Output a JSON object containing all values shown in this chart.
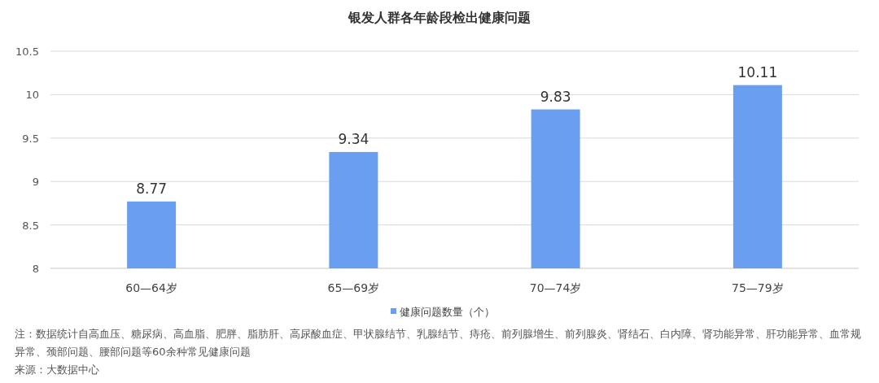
{
  "chart_data": {
    "type": "bar",
    "title": "银发人群各年龄段检出健康问题",
    "categories": [
      "60—64岁",
      "65—69岁",
      "70—74岁",
      "75—79岁"
    ],
    "series": [
      {
        "name": "健康问题数量（个）",
        "color": "#6a9ef0",
        "values": [
          8.77,
          9.34,
          9.83,
          10.11
        ]
      }
    ],
    "ylim": [
      8,
      10.5
    ],
    "yticks": [
      8,
      8.5,
      9,
      9.5,
      10,
      10.5
    ],
    "grid": "y",
    "legend": "bottom",
    "data_labels": true,
    "annotations": [
      "注：数据统计自高血压、糖尿病、高血脂、肥胖、脂肪肝、高尿酸血症、甲状腺结节、乳腺结节、痔疮、前列腺增生、前列腺炎、肾结石、白内障、肾功能异常、肝功能异常、血常规异常、颈部问题、腰部问题等60余种常见健康问题",
      "来源：大数据中心"
    ]
  }
}
